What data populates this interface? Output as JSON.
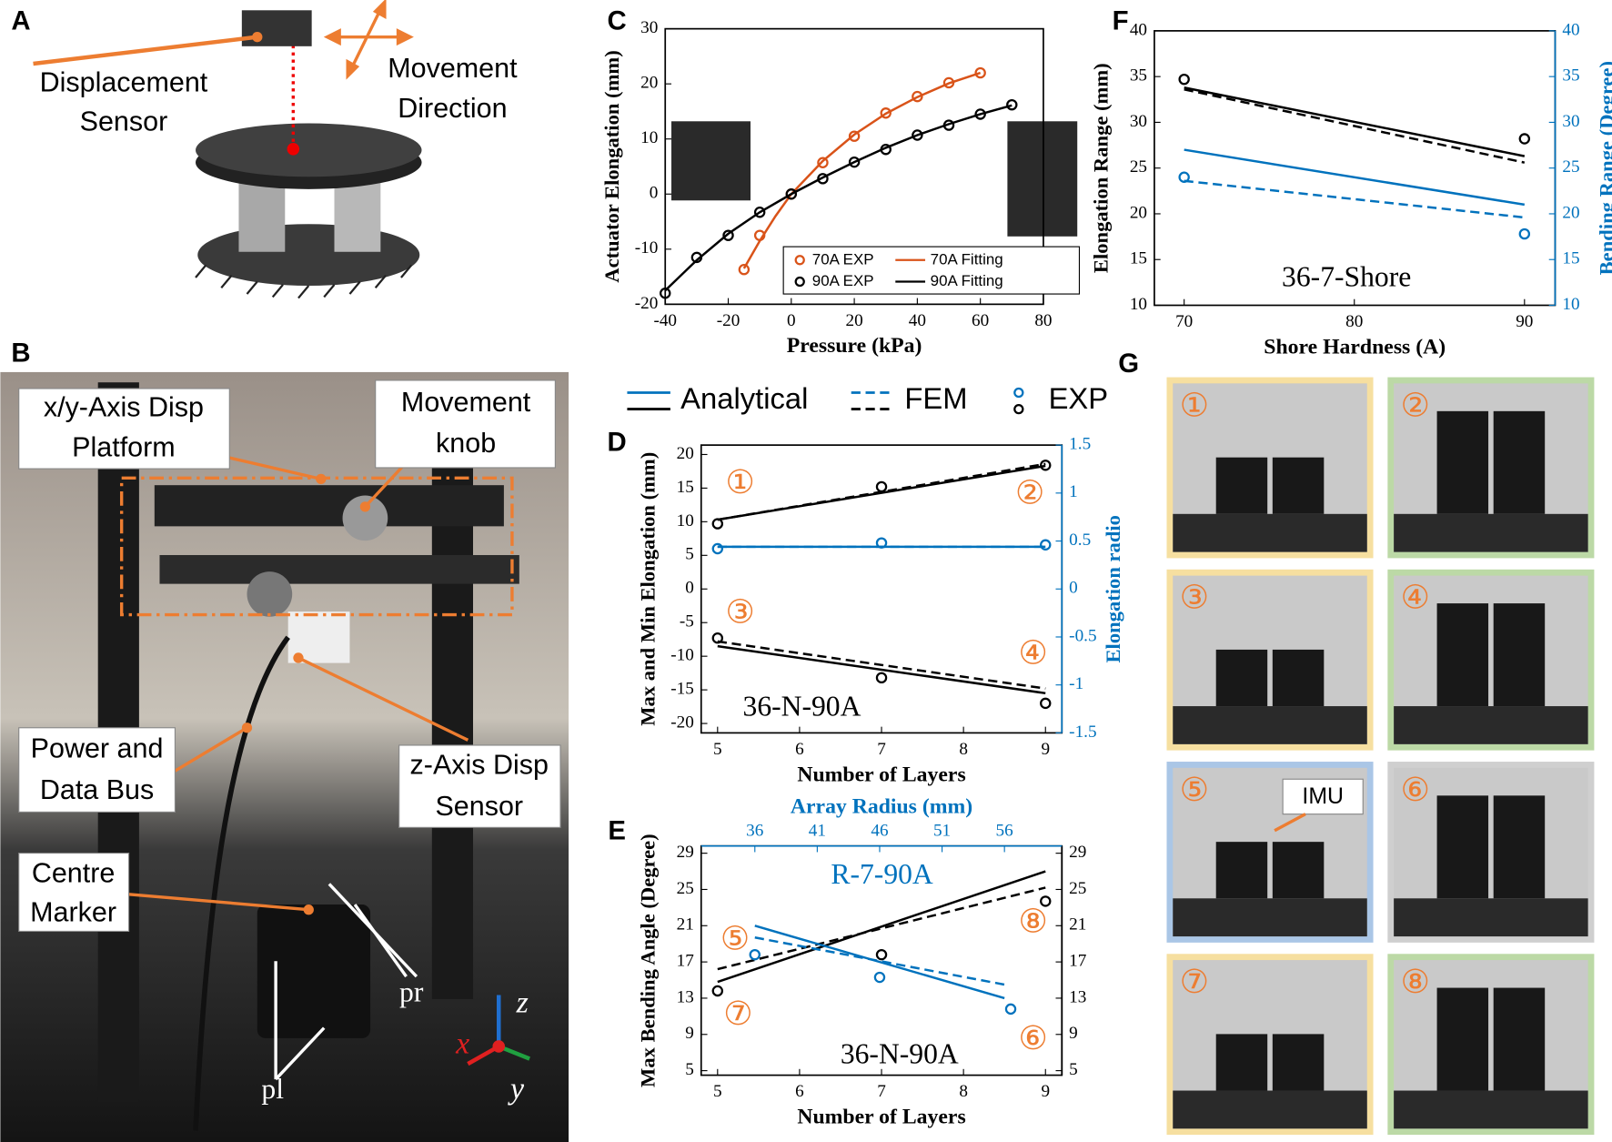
{
  "panel_labels": [
    "A",
    "B",
    "C",
    "D",
    "E",
    "F",
    "G"
  ],
  "panel_a": {
    "sensor": [
      "Displacement",
      "Sensor"
    ],
    "direction": [
      "Movement",
      "Direction"
    ]
  },
  "panel_b": {
    "callouts": [
      [
        "x/y-Axis Disp",
        "Platform"
      ],
      [
        "Movement",
        "knob"
      ],
      [
        "Power and",
        "Data Bus"
      ],
      [
        "z-Axis Disp",
        "Sensor"
      ],
      [
        "Centre",
        "Marker"
      ]
    ],
    "markers": [
      "pl",
      "pr"
    ],
    "axes": [
      "x",
      "y",
      "z"
    ]
  },
  "panel_g": {
    "tiles": [
      "①",
      "②",
      "③",
      "④",
      "⑤",
      "⑥",
      "⑦",
      "⑧"
    ],
    "imu": "IMU"
  },
  "legend": {
    "entries": [
      {
        "name": "Analytical",
        "style": "solid"
      },
      {
        "name": "FEM",
        "style": "dashed"
      },
      {
        "name": "EXP",
        "style": "marker"
      }
    ],
    "colors": [
      "#0072bd",
      "#000000"
    ]
  },
  "chart_data": [
    {
      "type": "line",
      "xlabel": "Pressure (kPa)",
      "ylabel": "Actuator Elongation (mm)",
      "xlim": [
        -40,
        80
      ],
      "xticks": [
        -40,
        -20,
        0,
        20,
        40,
        60,
        80
      ],
      "ylim": [
        -20,
        30
      ],
      "yticks": [
        -20,
        -10,
        0,
        10,
        20,
        30
      ],
      "legend": "lower right",
      "series": [
        {
          "name": "70A EXP",
          "color": "#d95319",
          "style": "marker",
          "x": [
            -15,
            -10,
            0,
            10,
            20,
            30,
            40,
            50,
            60
          ],
          "values": [
            -13.7,
            -7.5,
            0,
            5.7,
            10.5,
            14.7,
            17.7,
            20.2,
            22.0
          ]
        },
        {
          "name": "70A Fitting",
          "color": "#d95319",
          "style": "solid",
          "x": [
            -15,
            -10,
            -5,
            0,
            10,
            20,
            30,
            40,
            50,
            60
          ],
          "values": [
            -13.5,
            -8.5,
            -4,
            0,
            6,
            10.8,
            14.6,
            17.6,
            20.1,
            22.0
          ]
        },
        {
          "name": "90A EXP",
          "color": "#000000",
          "style": "marker",
          "x": [
            -40,
            -30,
            -20,
            -10,
            0,
            10,
            20,
            30,
            40,
            50,
            60,
            70
          ],
          "values": [
            -18,
            -11.5,
            -7.5,
            -3.3,
            0,
            2.8,
            5.8,
            8.1,
            10.7,
            12.5,
            14.5,
            16.2
          ]
        },
        {
          "name": "90A Fitting",
          "color": "#000000",
          "style": "solid",
          "x": [
            -40,
            -30,
            -20,
            -10,
            0,
            10,
            20,
            30,
            40,
            50,
            60,
            70
          ],
          "values": [
            -17.5,
            -12,
            -7.2,
            -3.3,
            0,
            3,
            5.8,
            8.4,
            10.7,
            12.7,
            14.5,
            16.1
          ]
        }
      ]
    },
    {
      "type": "line",
      "xlabel": "Number of Layers",
      "ylabel": "Max and Min Elongation (mm)",
      "y2label": "Elongation radio",
      "xlim": [
        4.8,
        9.2
      ],
      "xticks": [
        5,
        6,
        7,
        8,
        9
      ],
      "ylim": [
        -21.4,
        21.4
      ],
      "yticks": [
        -20,
        -15,
        -10,
        -5,
        0,
        5,
        10,
        15,
        20
      ],
      "y2lim": [
        -1.5,
        1.5
      ],
      "y2ticks": [
        -1.5,
        -1,
        -0.5,
        0,
        0.5,
        1,
        1.5
      ],
      "y2color": "#0072bd",
      "annotations": [
        "①",
        "②",
        "③",
        "④",
        "36-N-90A"
      ],
      "series": [
        {
          "color": "#000000",
          "style": "solid",
          "x": [
            5,
            9
          ],
          "values": [
            10.3,
            18.3
          ]
        },
        {
          "color": "#000000",
          "style": "dashed",
          "x": [
            5,
            9
          ],
          "values": [
            10.3,
            18.6
          ]
        },
        {
          "color": "#000000",
          "style": "marker",
          "x": [
            5,
            7,
            9
          ],
          "values": [
            9.7,
            15.2,
            18.4
          ]
        },
        {
          "color": "#000000",
          "style": "solid",
          "x": [
            5,
            9
          ],
          "values": [
            -8.5,
            -15.5
          ]
        },
        {
          "color": "#000000",
          "style": "dashed",
          "x": [
            5,
            9
          ],
          "values": [
            -7.8,
            -14.8
          ]
        },
        {
          "color": "#000000",
          "style": "marker",
          "x": [
            5,
            7,
            9
          ],
          "values": [
            -7.3,
            -13.2,
            -17
          ]
        },
        {
          "color": "#0072bd",
          "style": "solid",
          "axis": "y2",
          "x": [
            5,
            9
          ],
          "values": [
            0.44,
            0.44
          ]
        },
        {
          "color": "#0072bd",
          "style": "dashed",
          "axis": "y2",
          "x": [
            5,
            9
          ],
          "values": [
            0.44,
            0.44
          ]
        },
        {
          "color": "#0072bd",
          "style": "marker",
          "axis": "y2",
          "x": [
            5,
            7,
            9
          ],
          "values": [
            0.42,
            0.48,
            0.46
          ]
        }
      ]
    },
    {
      "type": "line",
      "xlabel": "Number of Layers",
      "x2label": "Array Radius (mm)",
      "ylabel": "Max Bending Angle (Degree)",
      "xlim": [
        4.8,
        9.2
      ],
      "xticks": [
        5,
        6,
        7,
        8,
        9
      ],
      "x2lim": [
        31.7,
        60.6
      ],
      "x2ticks": [
        36,
        41,
        46,
        51,
        56
      ],
      "x2color": "#0072bd",
      "ylim": [
        4.5,
        29.8
      ],
      "yticks": [
        5,
        9,
        13,
        17,
        21,
        25,
        29
      ],
      "y2lim": [
        4.5,
        29.8
      ],
      "y2ticks": [
        5,
        9,
        13,
        17,
        21,
        25,
        29
      ],
      "annotations": [
        "⑤",
        "⑥",
        "⑦",
        "⑧",
        "R-7-90A",
        "36-N-90A"
      ],
      "series": [
        {
          "color": "#000000",
          "style": "solid",
          "x": [
            5,
            9
          ],
          "values": [
            14.8,
            27
          ]
        },
        {
          "color": "#000000",
          "style": "dashed",
          "x": [
            5,
            9
          ],
          "values": [
            16.2,
            25.2
          ]
        },
        {
          "color": "#000000",
          "style": "marker",
          "x": [
            5,
            7,
            9
          ],
          "values": [
            13.8,
            17.8,
            23.7
          ]
        },
        {
          "color": "#0072bd",
          "style": "solid",
          "xaxis": "x2",
          "x": [
            36,
            56
          ],
          "values": [
            21,
            13
          ]
        },
        {
          "color": "#0072bd",
          "style": "dashed",
          "xaxis": "x2",
          "x": [
            36,
            56
          ],
          "values": [
            19.7,
            14.5
          ]
        },
        {
          "color": "#0072bd",
          "style": "marker",
          "xaxis": "x2",
          "x": [
            36,
            46,
            56.5
          ],
          "values": [
            17.8,
            15.3,
            11.8
          ]
        }
      ]
    },
    {
      "type": "line",
      "xlabel": "Shore Hardness (A)",
      "ylabel": "Elongation Range (mm)",
      "y2label": "Bending Range (Degree)",
      "xlim": [
        68.25,
        91.8
      ],
      "xticks": [
        70,
        80,
        90
      ],
      "ylim": [
        10,
        40
      ],
      "yticks": [
        10,
        15,
        20,
        25,
        30,
        35,
        40
      ],
      "y2lim": [
        10,
        40
      ],
      "y2ticks": [
        10,
        15,
        20,
        25,
        30,
        35,
        40
      ],
      "y2color": "#0072bd",
      "annotations": [
        "36-7-Shore"
      ],
      "series": [
        {
          "color": "#000000",
          "style": "solid",
          "x": [
            70,
            90
          ],
          "values": [
            33.8,
            26.3
          ]
        },
        {
          "color": "#000000",
          "style": "dashed",
          "x": [
            70,
            90
          ],
          "values": [
            33.6,
            25.6
          ]
        },
        {
          "color": "#000000",
          "style": "marker",
          "x": [
            70,
            90
          ],
          "values": [
            34.7,
            28.2
          ]
        },
        {
          "color": "#0072bd",
          "style": "solid",
          "axis": "y2",
          "x": [
            70,
            90
          ],
          "values": [
            27,
            21
          ]
        },
        {
          "color": "#0072bd",
          "style": "dashed",
          "axis": "y2",
          "x": [
            70,
            90
          ],
          "values": [
            23.6,
            19.6
          ]
        },
        {
          "color": "#0072bd",
          "style": "marker",
          "axis": "y2",
          "x": [
            70,
            90
          ],
          "values": [
            24,
            17.8
          ]
        }
      ]
    }
  ]
}
